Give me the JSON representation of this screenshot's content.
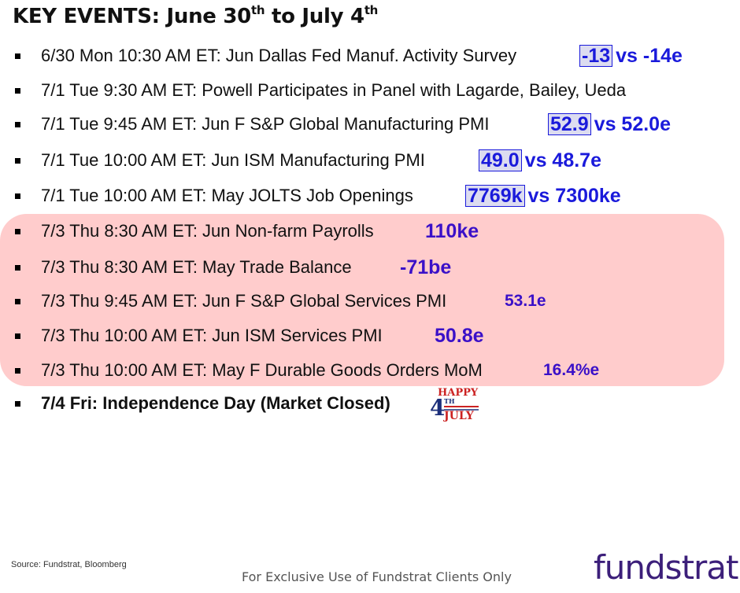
{
  "title": {
    "main": "KEY EVENTS: June 30",
    "sup1": "th",
    "mid": " to July 4",
    "sup2": "th"
  },
  "events": [
    {
      "text": "6/30 Mon 10:30 AM ET: Jun Dallas Fed Manuf. Activity Survey",
      "actual": "-13",
      "vs": "vs  -14e"
    },
    {
      "text": "7/1 Tue 9:30 AM ET: Powell Participates in Panel with Lagarde, Bailey, Ueda"
    },
    {
      "text": "7/1 Tue 9:45 AM ET: Jun F S&P Global Manufacturing PMI",
      "actual": "52.9",
      "vs": "vs 52.0e"
    },
    {
      "text": "7/1 Tue 10:00 AM ET: Jun ISM Manufacturing PMI",
      "actual": "49.0",
      "vs": "vs 48.7e"
    },
    {
      "text": "7/1 Tue 10:00 AM ET: May JOLTS Job Openings",
      "actual": "7769k",
      "vs": "vs 7300ke"
    },
    {
      "text": "7/3 Thu 8:30 AM ET: Jun Non-farm Payrolls",
      "estimate": "110ke"
    },
    {
      "text": "7/3 Thu 8:30 AM ET: May Trade Balance",
      "estimate": "-71be"
    },
    {
      "text": "7/3 Thu 9:45 AM ET: Jun F S&P Global Services PMI",
      "estimate": "53.1e"
    },
    {
      "text": "7/3 Thu 10:00 AM ET: Jun ISM Services PMI",
      "estimate": "50.8e"
    },
    {
      "text": "7/3 Thu 10:00 AM ET: May F Durable Goods Orders MoM",
      "estimate": "16.4%e"
    },
    {
      "text": "7/4 Fri: Independence Day (Market Closed)"
    }
  ],
  "holiday_logo": {
    "happy": "HAPPY",
    "four": "4",
    "th": "TH",
    "july": "JULY"
  },
  "source": "Source: Fundstrat, Bloomberg",
  "footer": "For Exclusive Use of Fundstrat Clients Only",
  "brand": "fundstrat",
  "colors": {
    "value_blue": "#1a1adb",
    "value_violet": "#3a10c8",
    "highlight": "#ffcccc",
    "brand": "#3c1f7a"
  }
}
